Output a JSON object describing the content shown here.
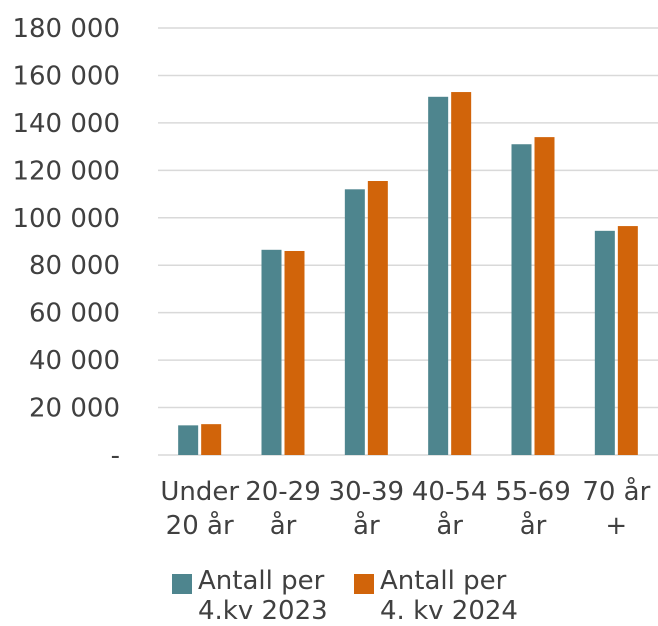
{
  "chart_data": {
    "type": "bar",
    "categories": [
      [
        "Under",
        "20 år"
      ],
      [
        "20-29",
        "år"
      ],
      [
        "30-39",
        "år"
      ],
      [
        "40-54",
        "år"
      ],
      [
        "55-69",
        "år"
      ],
      [
        "70 år",
        "+"
      ]
    ],
    "series": [
      {
        "name": "Antall per 4.kv 2023",
        "name_lines": [
          "Antall per",
          "4.kv 2023"
        ],
        "color": "#4e858e",
        "values": [
          12500,
          86500,
          112000,
          151000,
          131000,
          94500
        ]
      },
      {
        "name": "Antall per 4. kv 2024",
        "name_lines": [
          "Antall per",
          "4. kv 2024"
        ],
        "color": "#d1640a",
        "values": [
          13000,
          86000,
          115500,
          153000,
          134000,
          96500
        ]
      }
    ],
    "ylim": [
      0,
      180000
    ],
    "yticks": [
      0,
      20000,
      40000,
      60000,
      80000,
      100000,
      120000,
      140000,
      160000,
      180000
    ],
    "ytick_labels": [
      "-",
      "20 000",
      "40 000",
      "60 000",
      "80 000",
      "100 000",
      "120 000",
      "140 000",
      "160 000",
      "180 000"
    ],
    "grid": true,
    "legend_position": "bottom"
  }
}
